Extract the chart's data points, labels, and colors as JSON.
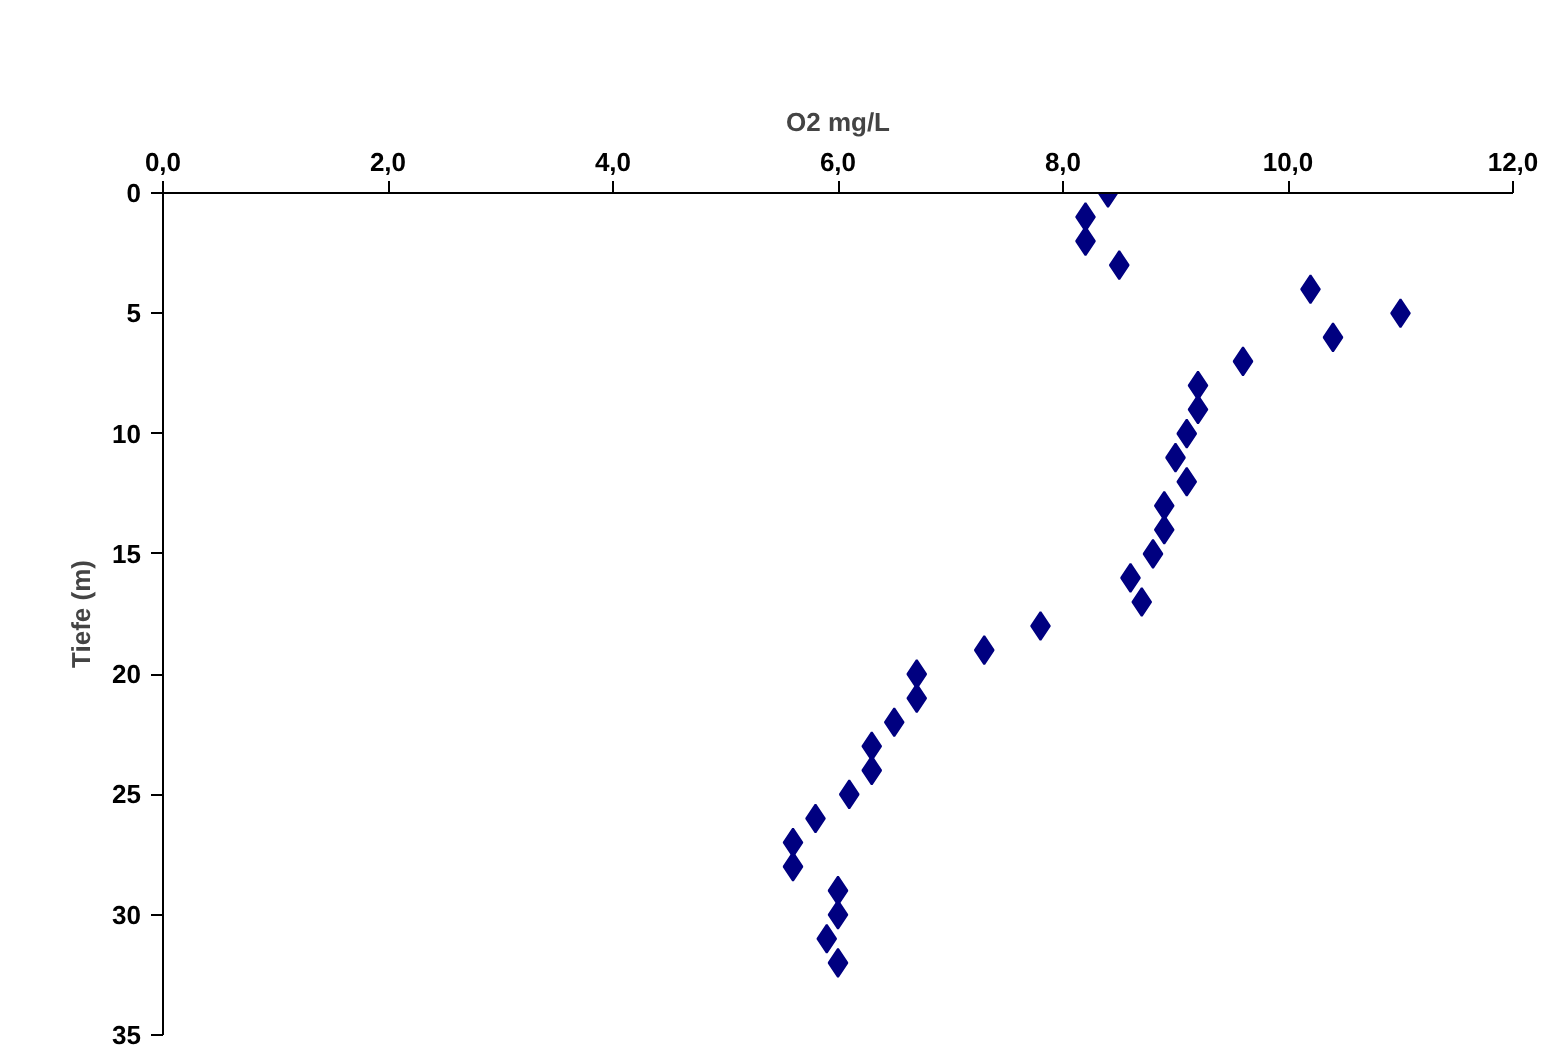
{
  "chart_data": {
    "type": "scatter",
    "xlabel": "O2 mg/L",
    "ylabel": "Tiefe (m)",
    "x": [
      8.4,
      8.2,
      8.2,
      8.5,
      10.2,
      11.0,
      10.4,
      9.6,
      9.2,
      9.2,
      9.1,
      9.0,
      9.1,
      8.9,
      8.9,
      8.8,
      8.6,
      8.7,
      7.8,
      7.3,
      6.7,
      6.7,
      6.5,
      6.3,
      6.3,
      6.1,
      5.8,
      5.6,
      5.6,
      6.0,
      6.0,
      5.9,
      6.0
    ],
    "values": [
      0,
      1,
      2,
      3,
      4,
      5,
      6,
      7,
      8,
      9,
      10,
      11,
      12,
      13,
      14,
      15,
      16,
      17,
      18,
      19,
      20,
      21,
      22,
      23,
      24,
      25,
      26,
      27,
      28,
      29,
      30,
      31,
      32
    ],
    "color": "#000080",
    "marker": "diamond",
    "grid": false,
    "xlim": [
      0,
      12
    ],
    "ylim": [
      35,
      0
    ],
    "xticks": [
      {
        "value": 0,
        "label": "0,0"
      },
      {
        "value": 2,
        "label": "2,0"
      },
      {
        "value": 4,
        "label": "4,0"
      },
      {
        "value": 6,
        "label": "6,0"
      },
      {
        "value": 8,
        "label": "8,0"
      },
      {
        "value": 10,
        "label": "10,0"
      },
      {
        "value": 12,
        "label": "12,0"
      }
    ],
    "yticks": [
      0,
      5,
      10,
      15,
      20,
      25,
      30,
      35
    ]
  }
}
